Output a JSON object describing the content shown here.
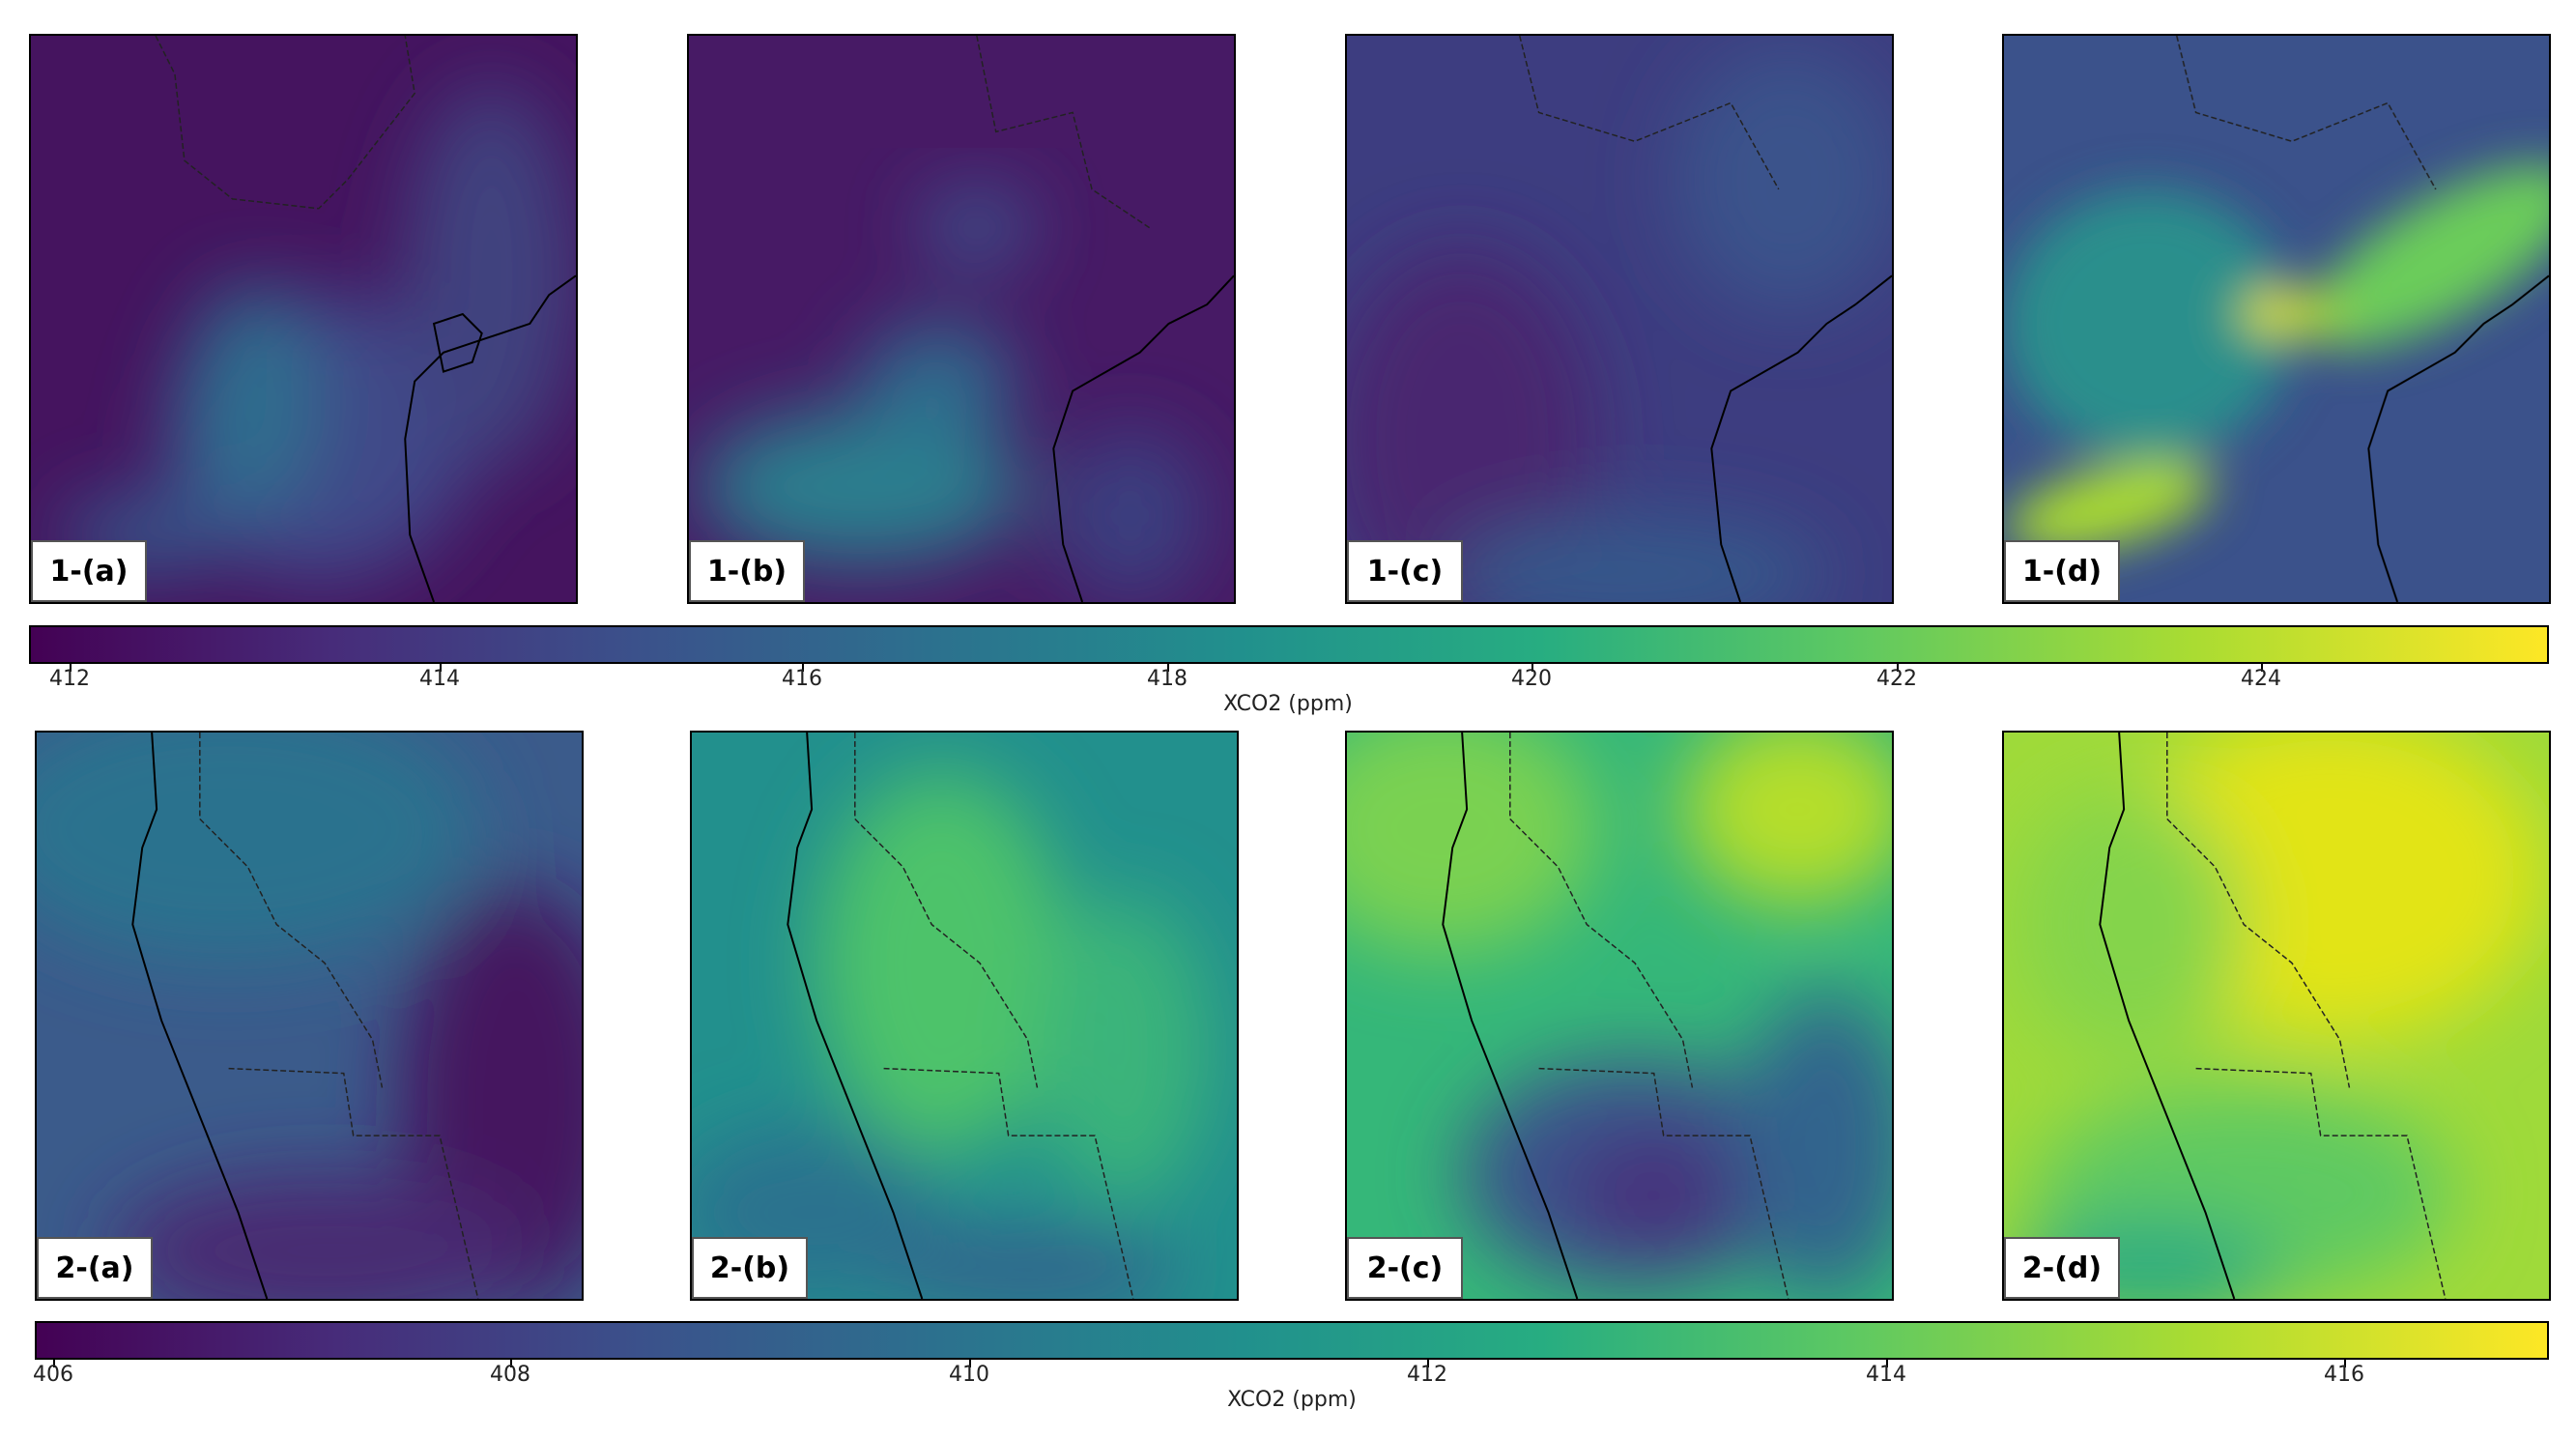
{
  "row1": {
    "panels": [
      {
        "label": "1-(a)"
      },
      {
        "label": "1-(b)"
      },
      {
        "label": "1-(c)"
      },
      {
        "label": "1-(d)"
      }
    ],
    "colorbar": {
      "label": "XCO2 (ppm)",
      "ticks": [
        "412",
        "414",
        "416",
        "418",
        "420",
        "422",
        "424"
      ],
      "range": [
        411.7,
        425.6
      ],
      "colormap": "viridis"
    }
  },
  "row2": {
    "panels": [
      {
        "label": "2-(a)"
      },
      {
        "label": "2-(b)"
      },
      {
        "label": "2-(c)"
      },
      {
        "label": "2-(d)"
      }
    ],
    "colorbar": {
      "label": "XCO2 (ppm)",
      "ticks": [
        "406",
        "408",
        "410",
        "412",
        "414",
        "416"
      ],
      "range": [
        405.9,
        417.0
      ],
      "colormap": "viridis"
    }
  }
}
